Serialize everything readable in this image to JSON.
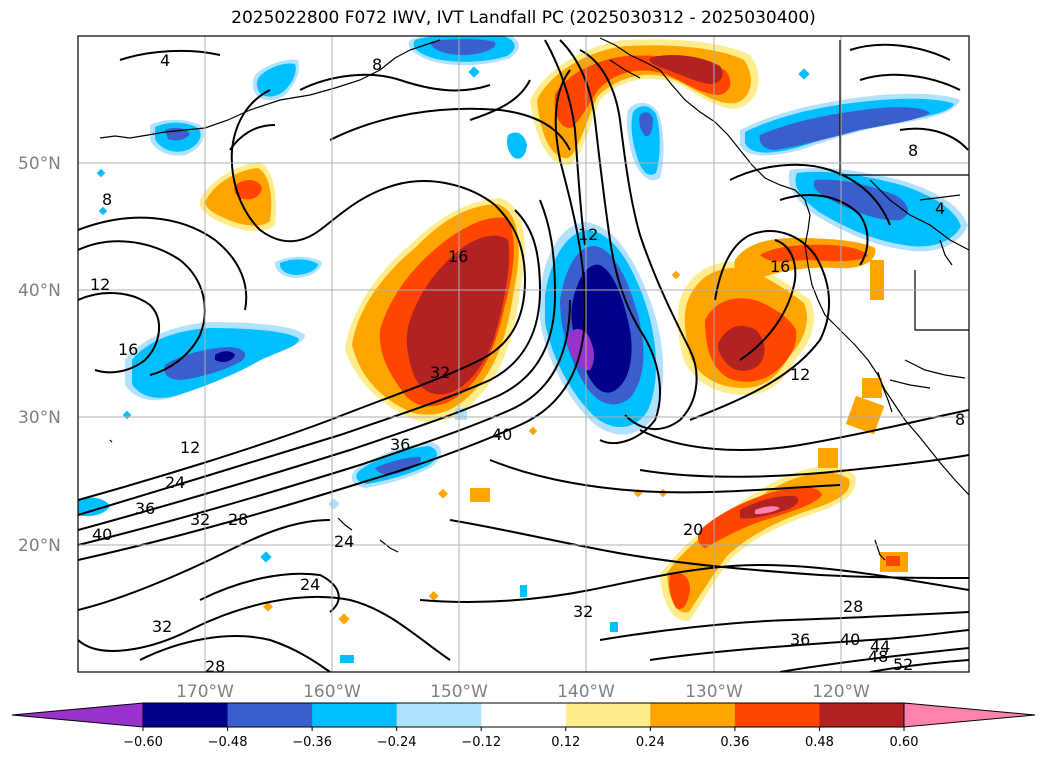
{
  "title": "2025022800 F072 IWV, IVT Landfall PC (2025030312 - 2025030400)",
  "lat_labels": [
    "50°N",
    "40°N",
    "30°N",
    "20°N"
  ],
  "lon_labels": [
    "170°W",
    "160°W",
    "150°W",
    "140°W",
    "130°W",
    "120°W"
  ],
  "contour_labels": [
    "4",
    "8",
    "8",
    "12",
    "16",
    "12",
    "16",
    "32",
    "16",
    "12",
    "40",
    "36",
    "12",
    "24",
    "36",
    "32",
    "28",
    "40",
    "24",
    "24",
    "32",
    "28",
    "20",
    "32",
    "28",
    "36",
    "40",
    "44",
    "48",
    "52",
    "8",
    "4",
    "8"
  ],
  "colorbar": {
    "ticks": [
      "−0.60",
      "−0.48",
      "−0.36",
      "−0.24",
      "−0.12",
      "0.12",
      "0.24",
      "0.36",
      "0.48",
      "0.60"
    ],
    "colors": [
      "#9932cc",
      "#00008b",
      "#3a5fcd",
      "#00bfff",
      "#b0e2ff",
      "#ffffff",
      "#ffec8b",
      "#ffa500",
      "#ff4500",
      "#b22222",
      "#ff82ab"
    ]
  }
}
